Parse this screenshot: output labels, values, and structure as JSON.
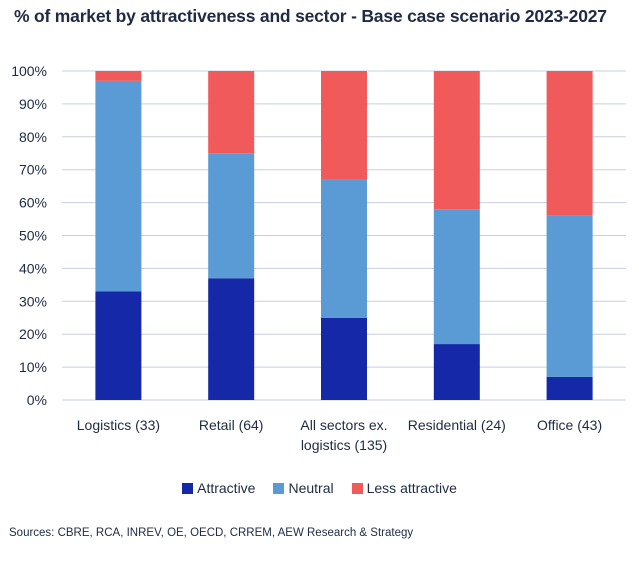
{
  "title": "% of market by attractiveness and sector - Base case scenario 2023-2027",
  "source": "Sources: CBRE, RCA, INREV, OE, OECD, CRREM, AEW Research & Strategy",
  "colors": {
    "attractive": "#1428a8",
    "neutral": "#5b9bd5",
    "less_attractive": "#f05a5a",
    "grid": "#c8cfe0",
    "axis_text": "#1f2a44"
  },
  "chart_data": {
    "type": "bar",
    "stacked": true,
    "title": "% of market by attractiveness and sector - Base case scenario 2023-2027",
    "categories": [
      [
        "Logistics (33)"
      ],
      [
        "Retail (64)"
      ],
      [
        "All sectors ex.",
        "logistics (135)"
      ],
      [
        "Residential (24)"
      ],
      [
        "Office (43)"
      ]
    ],
    "series": [
      {
        "name": "Attractive",
        "values": [
          33,
          37,
          25,
          17,
          7
        ]
      },
      {
        "name": "Neutral",
        "values": [
          64,
          38,
          42,
          41,
          49
        ]
      },
      {
        "name": "Less attractive",
        "values": [
          3,
          25,
          33,
          42,
          44
        ]
      }
    ],
    "y_ticks": [
      "0%",
      "10%",
      "20%",
      "30%",
      "40%",
      "50%",
      "60%",
      "70%",
      "80%",
      "90%",
      "100%"
    ],
    "ylim": [
      0,
      100
    ],
    "grid": true,
    "legend_position": "bottom"
  }
}
